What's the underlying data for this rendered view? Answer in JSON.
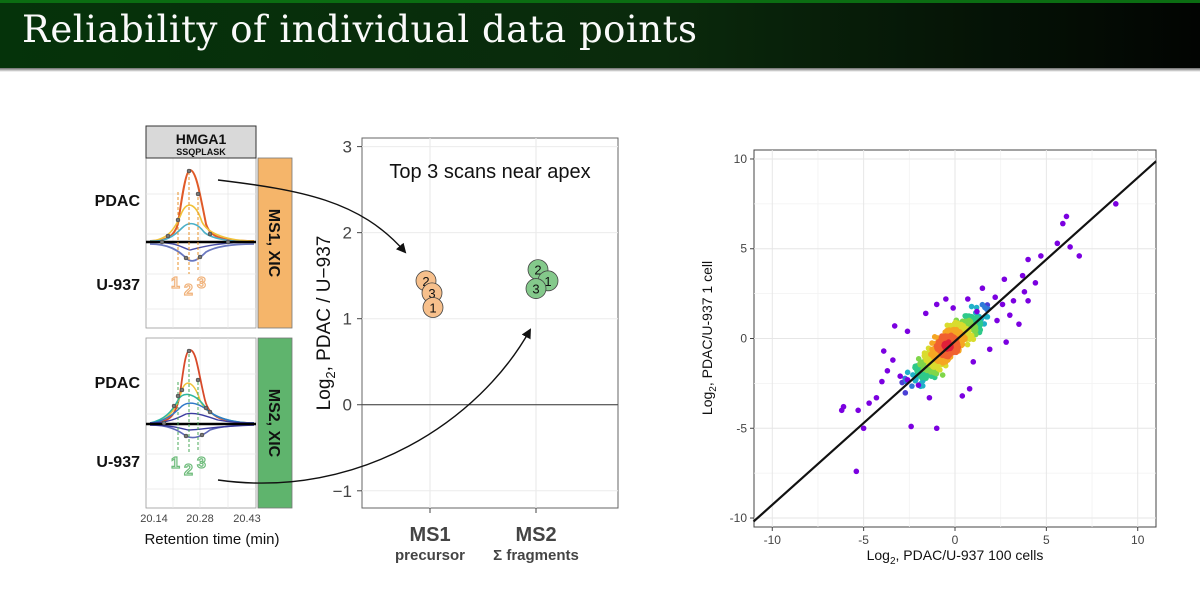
{
  "slide": {
    "title": "Reliability of individual data points"
  },
  "xic_panel": {
    "protein": "HMGA1",
    "peptide": "SSQPLASK",
    "ms1_label": "MS1, XIC",
    "ms2_label": "MS2, XIC",
    "pdac_label": "PDAC",
    "u937_label": "U-937",
    "scan_numbers": [
      "1",
      "2",
      "3"
    ],
    "x_ticks": [
      "20.14",
      "20.28",
      "20.43"
    ],
    "x_label": "Retention time (min)",
    "colors": {
      "ms1": "#f5b56a",
      "ms2": "#5fb46d",
      "ms1_digits": "#f0b27a",
      "ms2_digits": "#6dbb7a"
    }
  },
  "chart_data": [
    {
      "type": "scatter",
      "annotation": "Top 3 scans near apex",
      "ylabel": "Log2, PDAC / U−937",
      "ylabel_main": "Log",
      "ylabel_sub": "2",
      "ylabel_rest": ", PDAC / U−937",
      "ylim": [
        -1.2,
        3.1
      ],
      "y_ticks": [
        "3",
        "2",
        "1",
        "0",
        "−1"
      ],
      "y_tick_values": [
        3,
        2,
        1,
        0,
        -1
      ],
      "categories": [
        "MS1",
        "MS2"
      ],
      "category_sublabels": [
        "precursor",
        "Σ fragments"
      ],
      "hline": 0,
      "series": [
        {
          "category": "MS1",
          "color": "#f7c08c",
          "points": [
            {
              "label": "2",
              "x": -0.08,
              "y": 1.44
            },
            {
              "label": "3",
              "x": 0.04,
              "y": 1.3
            },
            {
              "label": "1",
              "x": 0.06,
              "y": 1.13
            }
          ]
        },
        {
          "category": "MS2",
          "color": "#84c98b",
          "points": [
            {
              "label": "2",
              "x": 0.04,
              "y": 1.57
            },
            {
              "label": "1",
              "x": 0.24,
              "y": 1.44
            },
            {
              "label": "3",
              "x": 0.0,
              "y": 1.35
            }
          ]
        }
      ]
    },
    {
      "type": "scatter",
      "xlabel": "Log2, PDAC/U-937 100 cells",
      "xlabel_main": "Log",
      "xlabel_sub": "2",
      "xlabel_rest": ", PDAC/U-937 100 cells",
      "ylabel": "Log2, PDAC/U-937 1 cell",
      "ylabel_main": "Log",
      "ylabel_sub": "2",
      "ylabel_rest": ", PDAC/U-937 1 cell",
      "xlim": [
        -11,
        11
      ],
      "ylim": [
        -10.5,
        10.5
      ],
      "x_ticks": [
        "-10",
        "-5",
        "0",
        "5",
        "10"
      ],
      "x_tick_values": [
        -10,
        -5,
        0,
        5,
        10
      ],
      "y_ticks": [
        "10",
        "5",
        "0",
        "-5",
        "-10"
      ],
      "y_tick_values": [
        10,
        5,
        0,
        -5,
        -10
      ],
      "grid": true,
      "fit_line": {
        "slope": 1.0,
        "intercept": 0
      },
      "density_colors": [
        "#7b00e0",
        "#4a3fd6",
        "#2f7bd8",
        "#21b1c9",
        "#2fc98a",
        "#7fd64a",
        "#d9dc2e",
        "#f5a623",
        "#f06030",
        "#e0203a"
      ],
      "points": [
        [
          8.8,
          7.5
        ],
        [
          6.1,
          6.8
        ],
        [
          5.9,
          6.4
        ],
        [
          6.8,
          4.6
        ],
        [
          6.3,
          5.1
        ],
        [
          5.6,
          5.3
        ],
        [
          4.7,
          4.6
        ],
        [
          4.0,
          4.4
        ],
        [
          3.7,
          3.5
        ],
        [
          4.4,
          3.1
        ],
        [
          3.8,
          2.6
        ],
        [
          4.0,
          2.1
        ],
        [
          2.7,
          3.3
        ],
        [
          1.5,
          2.8
        ],
        [
          0.7,
          2.2
        ],
        [
          -0.5,
          2.2
        ],
        [
          -1.0,
          1.9
        ],
        [
          -2.6,
          0.4
        ],
        [
          -3.3,
          0.7
        ],
        [
          -3.4,
          -1.2
        ],
        [
          -3.7,
          -1.8
        ],
        [
          -4.0,
          -2.4
        ],
        [
          -4.3,
          -3.3
        ],
        [
          -4.7,
          -3.6
        ],
        [
          -5.3,
          -4.0
        ],
        [
          -5.4,
          -7.4
        ],
        [
          -6.1,
          -3.8
        ],
        [
          -6.2,
          -4.0
        ],
        [
          -5.0,
          -5.0
        ],
        [
          -2.4,
          -4.9
        ],
        [
          -1.4,
          -3.3
        ],
        [
          -1.0,
          -5.0
        ],
        [
          0.4,
          -3.2
        ],
        [
          0.8,
          -2.8
        ],
        [
          -2.0,
          -2.6
        ],
        [
          -2.6,
          -2.3
        ],
        [
          -3.0,
          -2.1
        ],
        [
          -3.9,
          -0.7
        ],
        [
          -1.6,
          1.4
        ],
        [
          -0.1,
          1.7
        ],
        [
          1.2,
          1.5
        ],
        [
          2.3,
          1.0
        ],
        [
          3.0,
          1.3
        ],
        [
          3.5,
          0.8
        ],
        [
          2.8,
          -0.2
        ],
        [
          1.9,
          -0.6
        ],
        [
          1.0,
          -1.3
        ],
        [
          2.6,
          1.9
        ],
        [
          2.2,
          2.3
        ],
        [
          3.2,
          2.1
        ]
      ]
    }
  ]
}
